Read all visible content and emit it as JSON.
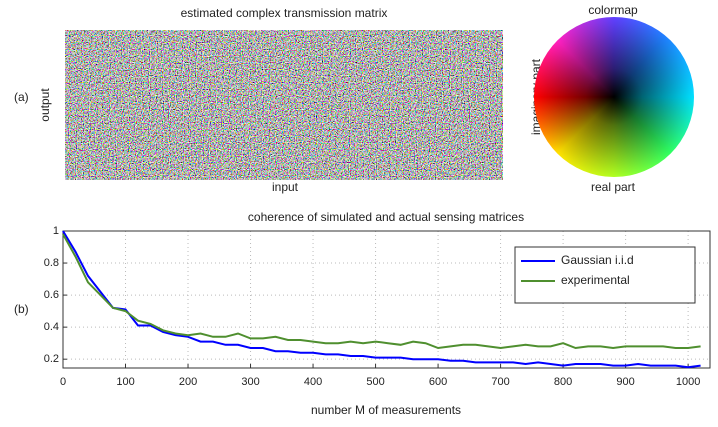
{
  "panel_labels": [
    "(a)",
    "(b)"
  ],
  "chart_data": [
    {
      "type": "image",
      "title": "estimated complex transmission matrix",
      "xlabel": "input",
      "ylabel": "output"
    },
    {
      "type": "colormap",
      "title": "colormap",
      "xlabel": "real part",
      "ylabel": "imaginary part"
    },
    {
      "type": "line",
      "title": "coherence of simulated and actual sensing matrices",
      "xlabel": "number M of measurements",
      "x": [
        0,
        20,
        40,
        60,
        80,
        100,
        120,
        140,
        160,
        180,
        200,
        220,
        240,
        260,
        280,
        300,
        320,
        340,
        360,
        380,
        400,
        420,
        440,
        460,
        480,
        500,
        520,
        540,
        560,
        580,
        600,
        620,
        640,
        660,
        680,
        700,
        720,
        740,
        760,
        780,
        800,
        820,
        840,
        860,
        880,
        900,
        920,
        940,
        960,
        980,
        1000,
        1020
      ],
      "series": [
        {
          "name": "Gaussian i.i.d",
          "color": "#0000ff",
          "values": [
            1.0,
            0.87,
            0.72,
            0.62,
            0.52,
            0.51,
            0.41,
            0.41,
            0.37,
            0.35,
            0.34,
            0.31,
            0.31,
            0.29,
            0.29,
            0.27,
            0.27,
            0.25,
            0.25,
            0.24,
            0.24,
            0.23,
            0.23,
            0.22,
            0.22,
            0.21,
            0.21,
            0.21,
            0.2,
            0.2,
            0.2,
            0.19,
            0.19,
            0.18,
            0.18,
            0.18,
            0.18,
            0.17,
            0.18,
            0.17,
            0.16,
            0.17,
            0.17,
            0.17,
            0.16,
            0.16,
            0.17,
            0.16,
            0.16,
            0.16,
            0.15,
            0.16
          ]
        },
        {
          "name": "experimental",
          "color": "#4f8f2f",
          "values": [
            0.98,
            0.84,
            0.68,
            0.6,
            0.52,
            0.5,
            0.44,
            0.42,
            0.38,
            0.36,
            0.35,
            0.36,
            0.34,
            0.34,
            0.36,
            0.33,
            0.33,
            0.34,
            0.32,
            0.32,
            0.31,
            0.3,
            0.3,
            0.31,
            0.3,
            0.31,
            0.3,
            0.29,
            0.31,
            0.3,
            0.27,
            0.28,
            0.29,
            0.29,
            0.28,
            0.27,
            0.28,
            0.29,
            0.28,
            0.28,
            0.3,
            0.27,
            0.28,
            0.28,
            0.27,
            0.28,
            0.28,
            0.28,
            0.28,
            0.27,
            0.27,
            0.28
          ]
        }
      ],
      "xlim": [
        0,
        1035
      ],
      "xticks": [
        0,
        100,
        200,
        300,
        400,
        500,
        600,
        700,
        800,
        900,
        1000
      ],
      "ylim": [
        0.145,
        1
      ],
      "yticks": [
        0.2,
        0.4,
        0.6,
        0.8,
        1
      ],
      "grid": true,
      "legend": "upper right"
    }
  ]
}
